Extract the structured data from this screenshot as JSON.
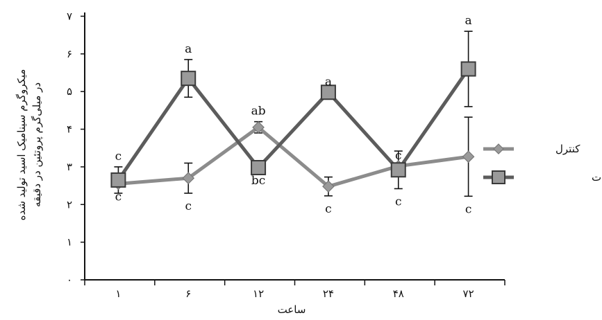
{
  "chart_data": {
    "type": "line",
    "xlabel": "ساعت",
    "ylabel_line1": "میکروگرم سیناميک اسید تولید شده",
    "ylabel_line2": "در میلی‌گرم پروتئین در دقیقه",
    "categories": [
      "۱",
      "۶",
      "۱۲",
      "۲۴",
      "۴۸",
      "۷۲"
    ],
    "yticks": [
      {
        "value": 0,
        "label": "۰"
      },
      {
        "value": 1,
        "label": "۱"
      },
      {
        "value": 2,
        "label": "۲"
      },
      {
        "value": 3,
        "label": "۳"
      },
      {
        "value": 4,
        "label": "۴"
      },
      {
        "value": 5,
        "label": "۵"
      },
      {
        "value": 6,
        "label": "۶"
      },
      {
        "value": 7,
        "label": "۷"
      }
    ],
    "ylim": [
      0,
      7.1
    ],
    "grid": false,
    "legend_position": "right",
    "series": [
      {
        "name": "کنترل",
        "marker": "diamond",
        "color": "#8c8c8c",
        "values": [
          2.55,
          2.7,
          4.05,
          2.48,
          3.02,
          3.27
        ],
        "errors": [
          0.0,
          0.4,
          0.15,
          0.25,
          0.0,
          1.05
        ],
        "labels": [
          "c",
          "c",
          "ab",
          "c",
          "c",
          "c"
        ]
      },
      {
        "name": "متیل جاسمونات",
        "marker": "square",
        "color": "#5c5c5c",
        "values": [
          2.65,
          5.35,
          2.98,
          4.98,
          2.92,
          5.6
        ],
        "errors": [
          0.35,
          0.5,
          0.0,
          0.0,
          0.5,
          1.0
        ],
        "labels": [
          "c",
          "a",
          "bc",
          "a",
          "c",
          "a"
        ]
      }
    ]
  }
}
